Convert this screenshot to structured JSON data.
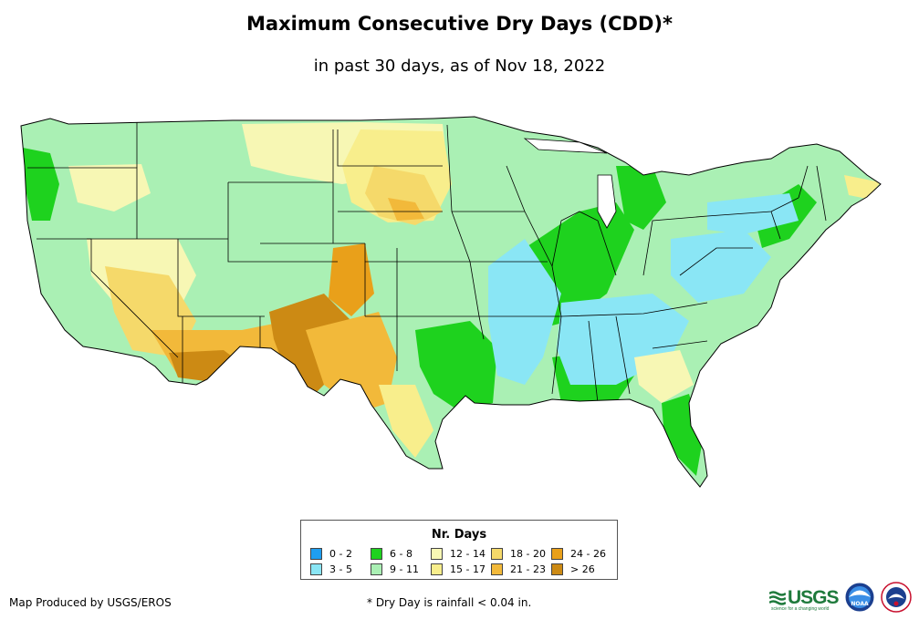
{
  "title": "Maximum Consecutive Dry Days (CDD)*",
  "subtitle": "in past 30 days, as of Nov 18, 2022",
  "legend": {
    "title": "Nr. Days",
    "items": [
      {
        "label": "0 - 2",
        "color": "#1e9ef0"
      },
      {
        "label": "6 - 8",
        "color": "#1ed21e"
      },
      {
        "label": "12 - 14",
        "color": "#f7f7b4"
      },
      {
        "label": "18 - 20",
        "color": "#f5d96a"
      },
      {
        "label": "24 - 26",
        "color": "#e9a01a"
      },
      {
        "label": "3 - 5",
        "color": "#8ae6f5"
      },
      {
        "label": "9 - 11",
        "color": "#aaf0b4"
      },
      {
        "label": "15 - 17",
        "color": "#f8ee8c"
      },
      {
        "label": "21 - 23",
        "color": "#f2b93a"
      },
      {
        "label": "> 26",
        "color": "#cc8a14"
      }
    ]
  },
  "credit": "Map Produced by USGS/EROS",
  "footnote": "* Dry Day is rainfall < 0.04 in.",
  "logos": {
    "usgs_text": "USGS",
    "usgs_tagline": "science for a changing world",
    "noaa_text": "NOAA"
  },
  "map_colors": {
    "base": "#aaf0b4",
    "wet_green": "#1ed21e",
    "cyan": "#8ae6f5",
    "pale_yellow": "#f7f7b4",
    "yellow": "#f8ee8c",
    "gold": "#f5d96a",
    "orange": "#f2b93a",
    "dark_orange": "#e9a01a",
    "brown": "#cc8a14",
    "border": "#000000"
  }
}
